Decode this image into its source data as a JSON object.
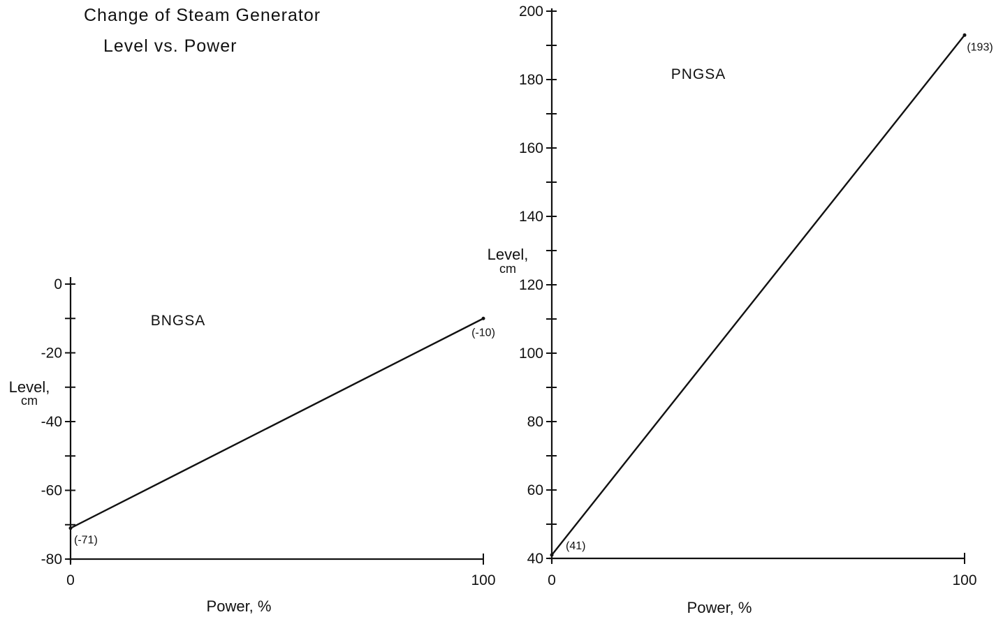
{
  "figure_title_line1": "Change of Steam Generator",
  "figure_title_line2": "Level vs. Power",
  "colors": {
    "ink": "#111111",
    "background": "#ffffff"
  },
  "chart_data": [
    {
      "type": "line",
      "series_label": "BNGSA",
      "xlabel": "Power, %",
      "ylabel": "Level,",
      "yunit": "cm",
      "xlim": [
        0,
        100
      ],
      "ylim": [
        -80,
        0
      ],
      "x_ticks": [
        0,
        100
      ],
      "x_tick_labels": [
        "0",
        "100"
      ],
      "y_ticks": [
        0,
        -10,
        -20,
        -30,
        -40,
        -50,
        -60,
        -70,
        -80
      ],
      "y_tick_labels": [
        {
          "value": 0,
          "label": "0"
        },
        {
          "value": -20,
          "label": "-20"
        },
        {
          "value": -40,
          "label": "-40"
        },
        {
          "value": -60,
          "label": "-60"
        },
        {
          "value": -80,
          "label": "-80"
        }
      ],
      "grid": false,
      "series": [
        {
          "x": [
            0,
            100
          ],
          "y": [
            -71,
            -10
          ],
          "point_labels": [
            "(-71)",
            "(-10)"
          ]
        }
      ]
    },
    {
      "type": "line",
      "series_label": "PNGSA",
      "xlabel": "Power, %",
      "ylabel": "Level,",
      "yunit": "cm",
      "xlim": [
        0,
        100
      ],
      "ylim": [
        40,
        200
      ],
      "x_ticks": [
        0,
        100
      ],
      "x_tick_labels": [
        "0",
        "100"
      ],
      "y_ticks": [
        40,
        50,
        60,
        70,
        80,
        90,
        100,
        110,
        120,
        130,
        140,
        150,
        160,
        170,
        180,
        190,
        200
      ],
      "y_tick_labels": [
        {
          "value": 40,
          "label": "40"
        },
        {
          "value": 60,
          "label": "60"
        },
        {
          "value": 80,
          "label": "80"
        },
        {
          "value": 100,
          "label": "100"
        },
        {
          "value": 120,
          "label": "120"
        },
        {
          "value": 140,
          "label": "140"
        },
        {
          "value": 160,
          "label": "160"
        },
        {
          "value": 180,
          "label": "180"
        },
        {
          "value": 200,
          "label": "200"
        }
      ],
      "grid": false,
      "series": [
        {
          "x": [
            0,
            100
          ],
          "y": [
            41,
            193
          ],
          "point_labels": [
            "(41)",
            "(193)"
          ]
        }
      ]
    }
  ]
}
